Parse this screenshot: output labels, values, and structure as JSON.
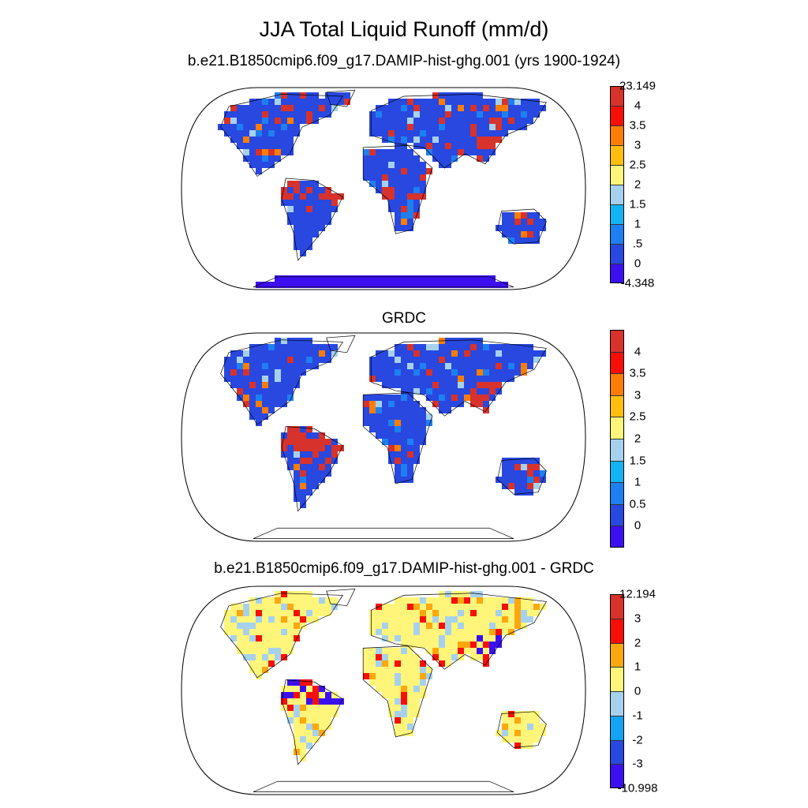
{
  "title": "JJA Total Liquid Runoff (mm/d)",
  "panels": [
    {
      "name": "model",
      "subtitle": "b.e21.B1850cmip6.f09_g17.DAMIP-hist-ghg.001 (yrs 1900-1924)",
      "colors": [
        "#3b0ff0",
        "#2848e0",
        "#1e7ff2",
        "#12b3f5",
        "#a6d1ee",
        "#fff57a",
        "#fdbe10",
        "#fb7d06",
        "#f50f07",
        "#d7322c"
      ],
      "labels": [
        "-4.348",
        "0",
        ".5",
        "1",
        "1.5",
        "2",
        "2.5",
        "3",
        "3.5",
        "4",
        "23.149"
      ]
    },
    {
      "name": "grdc",
      "subtitle": "GRDC",
      "colors": [
        "#3b0ff0",
        "#2848e0",
        "#1e7ff2",
        "#12b3f5",
        "#a6d1ee",
        "#fff57a",
        "#fdbe10",
        "#fb7d06",
        "#f50f07",
        "#d7322c"
      ],
      "labels": [
        "0",
        "0.5",
        "1",
        "1.5",
        "2",
        "2.5",
        "3",
        "3.5",
        "4"
      ]
    },
    {
      "name": "difference",
      "subtitle": "b.e21.B1850cmip6.f09_g17.DAMIP-hist-ghg.001 - GRDC",
      "colors": [
        "#3b0ff0",
        "#2848e0",
        "#12a3f5",
        "#a6d1ee",
        "#fff57a",
        "#fba80e",
        "#f50f07",
        "#d7322c"
      ],
      "labels": [
        "-10.998",
        "-3",
        "-2",
        "-1",
        "0",
        "1",
        "2",
        "3",
        "12.194"
      ]
    }
  ]
}
